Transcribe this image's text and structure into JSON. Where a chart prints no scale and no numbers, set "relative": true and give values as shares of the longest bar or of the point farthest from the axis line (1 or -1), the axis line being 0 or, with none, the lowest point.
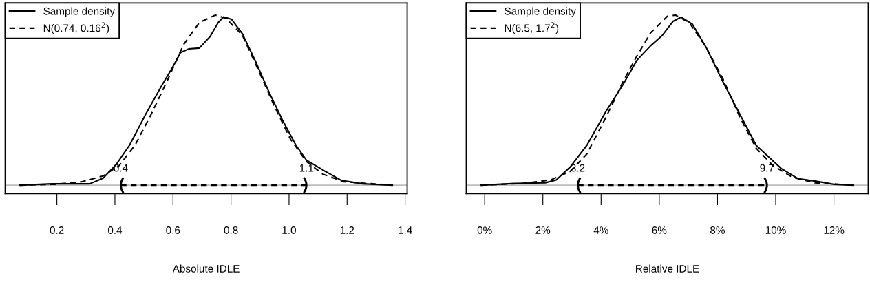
{
  "chart_data": [
    {
      "type": "line",
      "xlabel": "Absolute IDLE",
      "relative": true,
      "xlim": [
        0.022,
        1.407
      ],
      "xticks": [
        0.2,
        0.4,
        0.6,
        0.8,
        {
          "value": 1.0,
          "label": "1.0"
        },
        1.2,
        1.4
      ],
      "legend": "top left",
      "grid": false,
      "tick_labels": "x",
      "series": [
        {
          "name": "Sample density",
          "color": "#000000",
          "line_style": "solid",
          "x": [
            0.073,
            0.183,
            0.313,
            0.359,
            0.405,
            0.451,
            0.506,
            0.562,
            0.599,
            0.626,
            0.654,
            0.691,
            0.728,
            0.756,
            0.774,
            0.802,
            0.839,
            0.885,
            0.931,
            0.977,
            1.023,
            1.06,
            1.116,
            1.18,
            1.254,
            1.356
          ],
          "values": [
            0,
            0.008,
            0.008,
            0.041,
            0.123,
            0.237,
            0.417,
            0.588,
            0.694,
            0.779,
            0.801,
            0.806,
            0.874,
            0.956,
            0.989,
            0.975,
            0.891,
            0.727,
            0.547,
            0.384,
            0.237,
            0.147,
            0.09,
            0.028,
            0.008,
            0
          ]
        },
        {
          "name": "N(0.74, 0.16$^{2}$)",
          "color": "#000000",
          "line_style": "dashed",
          "x": [
            0.073,
            0.193,
            0.285,
            0.359,
            0.414,
            0.47,
            0.525,
            0.58,
            0.636,
            0.691,
            0.746,
            0.783,
            0.839,
            0.894,
            0.949,
            1.005,
            1.06,
            1.116,
            1.189,
            1.356
          ],
          "values": [
            0,
            0.005,
            0.02,
            0.054,
            0.114,
            0.237,
            0.417,
            0.613,
            0.825,
            0.956,
            1.0,
            0.98,
            0.882,
            0.678,
            0.466,
            0.27,
            0.139,
            0.065,
            0.02,
            0
          ]
        },
        {
          "color": "#000000",
          "line_style": "dashed",
          "x": [
            0.42,
            1.06
          ],
          "values": [
            0,
            0
          ]
        }
      ],
      "ref_lines": [
        {
          "axis": "y",
          "value": 0,
          "color": "#bebebe",
          "line_style": "solid"
        }
      ],
      "annotations": [
        {
          "text": "0.4",
          "x": 0.42,
          "y": 0
        },
        {
          "text": "1.1",
          "x": 1.06,
          "y": 0
        }
      ]
    },
    {
      "type": "line",
      "xlabel": "Relative IDLE",
      "relative": true,
      "xlim": [
        -0.63,
        13.18
      ],
      "xticks": [
        {
          "value": 0,
          "label": "0%"
        },
        {
          "value": 2,
          "label": "2%"
        },
        {
          "value": 4,
          "label": "4%"
        },
        {
          "value": 6,
          "label": "6%"
        },
        {
          "value": 8,
          "label": "8%"
        },
        {
          "value": 10,
          "label": "10%"
        },
        {
          "value": 12,
          "label": "12%"
        }
      ],
      "legend": "top left",
      "grid": false,
      "tick_labels": "x",
      "series": [
        {
          "name": "Sample density",
          "color": "#000000",
          "line_style": "solid",
          "x": [
            -0.12,
            1.03,
            2.08,
            2.46,
            2.94,
            3.51,
            4.18,
            4.75,
            5.23,
            5.7,
            6.09,
            6.47,
            6.75,
            7.14,
            7.61,
            8.19,
            8.76,
            9.33,
            9.81,
            10.19,
            10.76,
            11.43,
            12.0,
            12.67
          ],
          "values": [
            0,
            0.01,
            0.014,
            0.031,
            0.107,
            0.234,
            0.437,
            0.59,
            0.734,
            0.819,
            0.878,
            0.963,
            0.988,
            0.946,
            0.81,
            0.607,
            0.42,
            0.234,
            0.158,
            0.098,
            0.039,
            0.022,
            0.005,
            0
          ]
        },
        {
          "name": "N(6.5, 1.7$^{2}$)",
          "color": "#000000",
          "line_style": "dashed",
          "x": [
            -0.12,
            1.31,
            2.27,
            2.94,
            3.51,
            4.18,
            4.75,
            5.23,
            5.7,
            6.28,
            6.56,
            7.04,
            7.61,
            8.19,
            8.76,
            9.33,
            9.91,
            10.57,
            11.34,
            12.67
          ],
          "values": [
            0,
            0.01,
            0.031,
            0.081,
            0.183,
            0.403,
            0.607,
            0.759,
            0.895,
            0.993,
            1.0,
            0.954,
            0.81,
            0.624,
            0.403,
            0.217,
            0.115,
            0.047,
            0.014,
            0
          ]
        },
        {
          "color": "#000000",
          "line_style": "dashed",
          "x": [
            3.2,
            9.7
          ],
          "values": [
            0,
            0
          ]
        }
      ],
      "ref_lines": [
        {
          "axis": "y",
          "value": 0,
          "color": "#bebebe",
          "line_style": "solid"
        }
      ],
      "annotations": [
        {
          "text": "3.2",
          "x": 3.2,
          "y": 0
        },
        {
          "text": "9.7",
          "x": 9.7,
          "y": 0
        }
      ]
    }
  ]
}
